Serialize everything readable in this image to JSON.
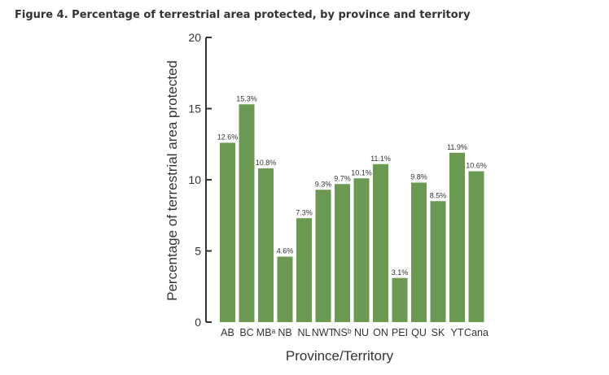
{
  "figure_title": "Figure 4. Percentage of terrestrial area protected, by province and territory",
  "colors": {
    "bar": "#6a9a52",
    "axis": "#333333",
    "text": "#333333"
  },
  "chart_data": {
    "type": "bar",
    "title": "Figure 4. Percentage of terrestrial area protected, by province and territory",
    "xlabel": "Province/Territory",
    "ylabel": "Percentage of terrestrial area protected",
    "ylim": [
      0,
      20
    ],
    "yticks": [
      0,
      5,
      10,
      15,
      20
    ],
    "grid": false,
    "categories": [
      "AB",
      "BC",
      "MBᵃ",
      "NB",
      "NL",
      "NWT",
      "NSᵇ",
      "NU",
      "ON",
      "PEI",
      "QU",
      "SK",
      "YT",
      "Cana"
    ],
    "values": [
      12.6,
      15.3,
      10.8,
      4.6,
      7.3,
      9.3,
      9.7,
      10.1,
      11.1,
      3.1,
      9.8,
      8.5,
      11.9,
      10.6
    ],
    "data_labels": [
      "12.6%",
      "15.3%",
      "10.8%",
      "4.6%",
      "7.3%",
      "9.3%",
      "9.7%",
      "10.1%",
      "11.1%",
      "3.1%",
      "9.8%",
      "8.5%",
      "11.9%",
      "10.6%"
    ]
  }
}
